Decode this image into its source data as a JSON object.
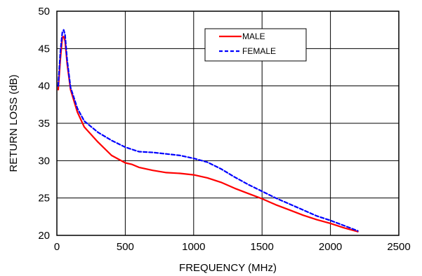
{
  "chart_data": {
    "type": "line",
    "title": "",
    "xlabel": "FREQUENCY (MHz)",
    "ylabel": "RETURN LOSS (dB)",
    "xlim": [
      0,
      2500
    ],
    "ylim": [
      20,
      50
    ],
    "xticks": [
      0,
      500,
      1000,
      1500,
      2000,
      2500
    ],
    "yticks": [
      20,
      25,
      30,
      35,
      40,
      45,
      50
    ],
    "grid": true,
    "legend_position": "top-right",
    "series": [
      {
        "name": "MALE",
        "color": "#ff0000",
        "style": "solid",
        "x": [
          10,
          25,
          40,
          50,
          60,
          75,
          100,
          150,
          200,
          300,
          400,
          500,
          550,
          600,
          700,
          800,
          900,
          1000,
          1100,
          1200,
          1300,
          1400,
          1500,
          1600,
          1700,
          1800,
          1900,
          2000,
          2100,
          2200
        ],
        "y": [
          39.5,
          43.5,
          46.5,
          46.6,
          46.0,
          43.0,
          39.5,
          36.5,
          34.5,
          32.5,
          30.7,
          29.7,
          29.5,
          29.1,
          28.7,
          28.4,
          28.3,
          28.1,
          27.7,
          27.1,
          26.3,
          25.6,
          24.9,
          24.1,
          23.4,
          22.7,
          22.1,
          21.6,
          21.0,
          20.5
        ]
      },
      {
        "name": "FEMALE",
        "color": "#0000ff",
        "style": "dashed",
        "x": [
          10,
          25,
          40,
          50,
          60,
          75,
          100,
          150,
          200,
          300,
          400,
          500,
          550,
          600,
          700,
          800,
          900,
          1000,
          1100,
          1200,
          1300,
          1400,
          1500,
          1600,
          1700,
          1800,
          1900,
          2000,
          2100,
          2200
        ],
        "y": [
          40.0,
          44.5,
          47.2,
          47.5,
          46.8,
          43.5,
          39.8,
          37.0,
          35.3,
          33.8,
          32.7,
          31.8,
          31.5,
          31.2,
          31.1,
          30.9,
          30.7,
          30.3,
          29.8,
          28.9,
          27.8,
          26.8,
          25.9,
          25.0,
          24.2,
          23.4,
          22.6,
          22.0,
          21.3,
          20.6
        ]
      }
    ]
  }
}
